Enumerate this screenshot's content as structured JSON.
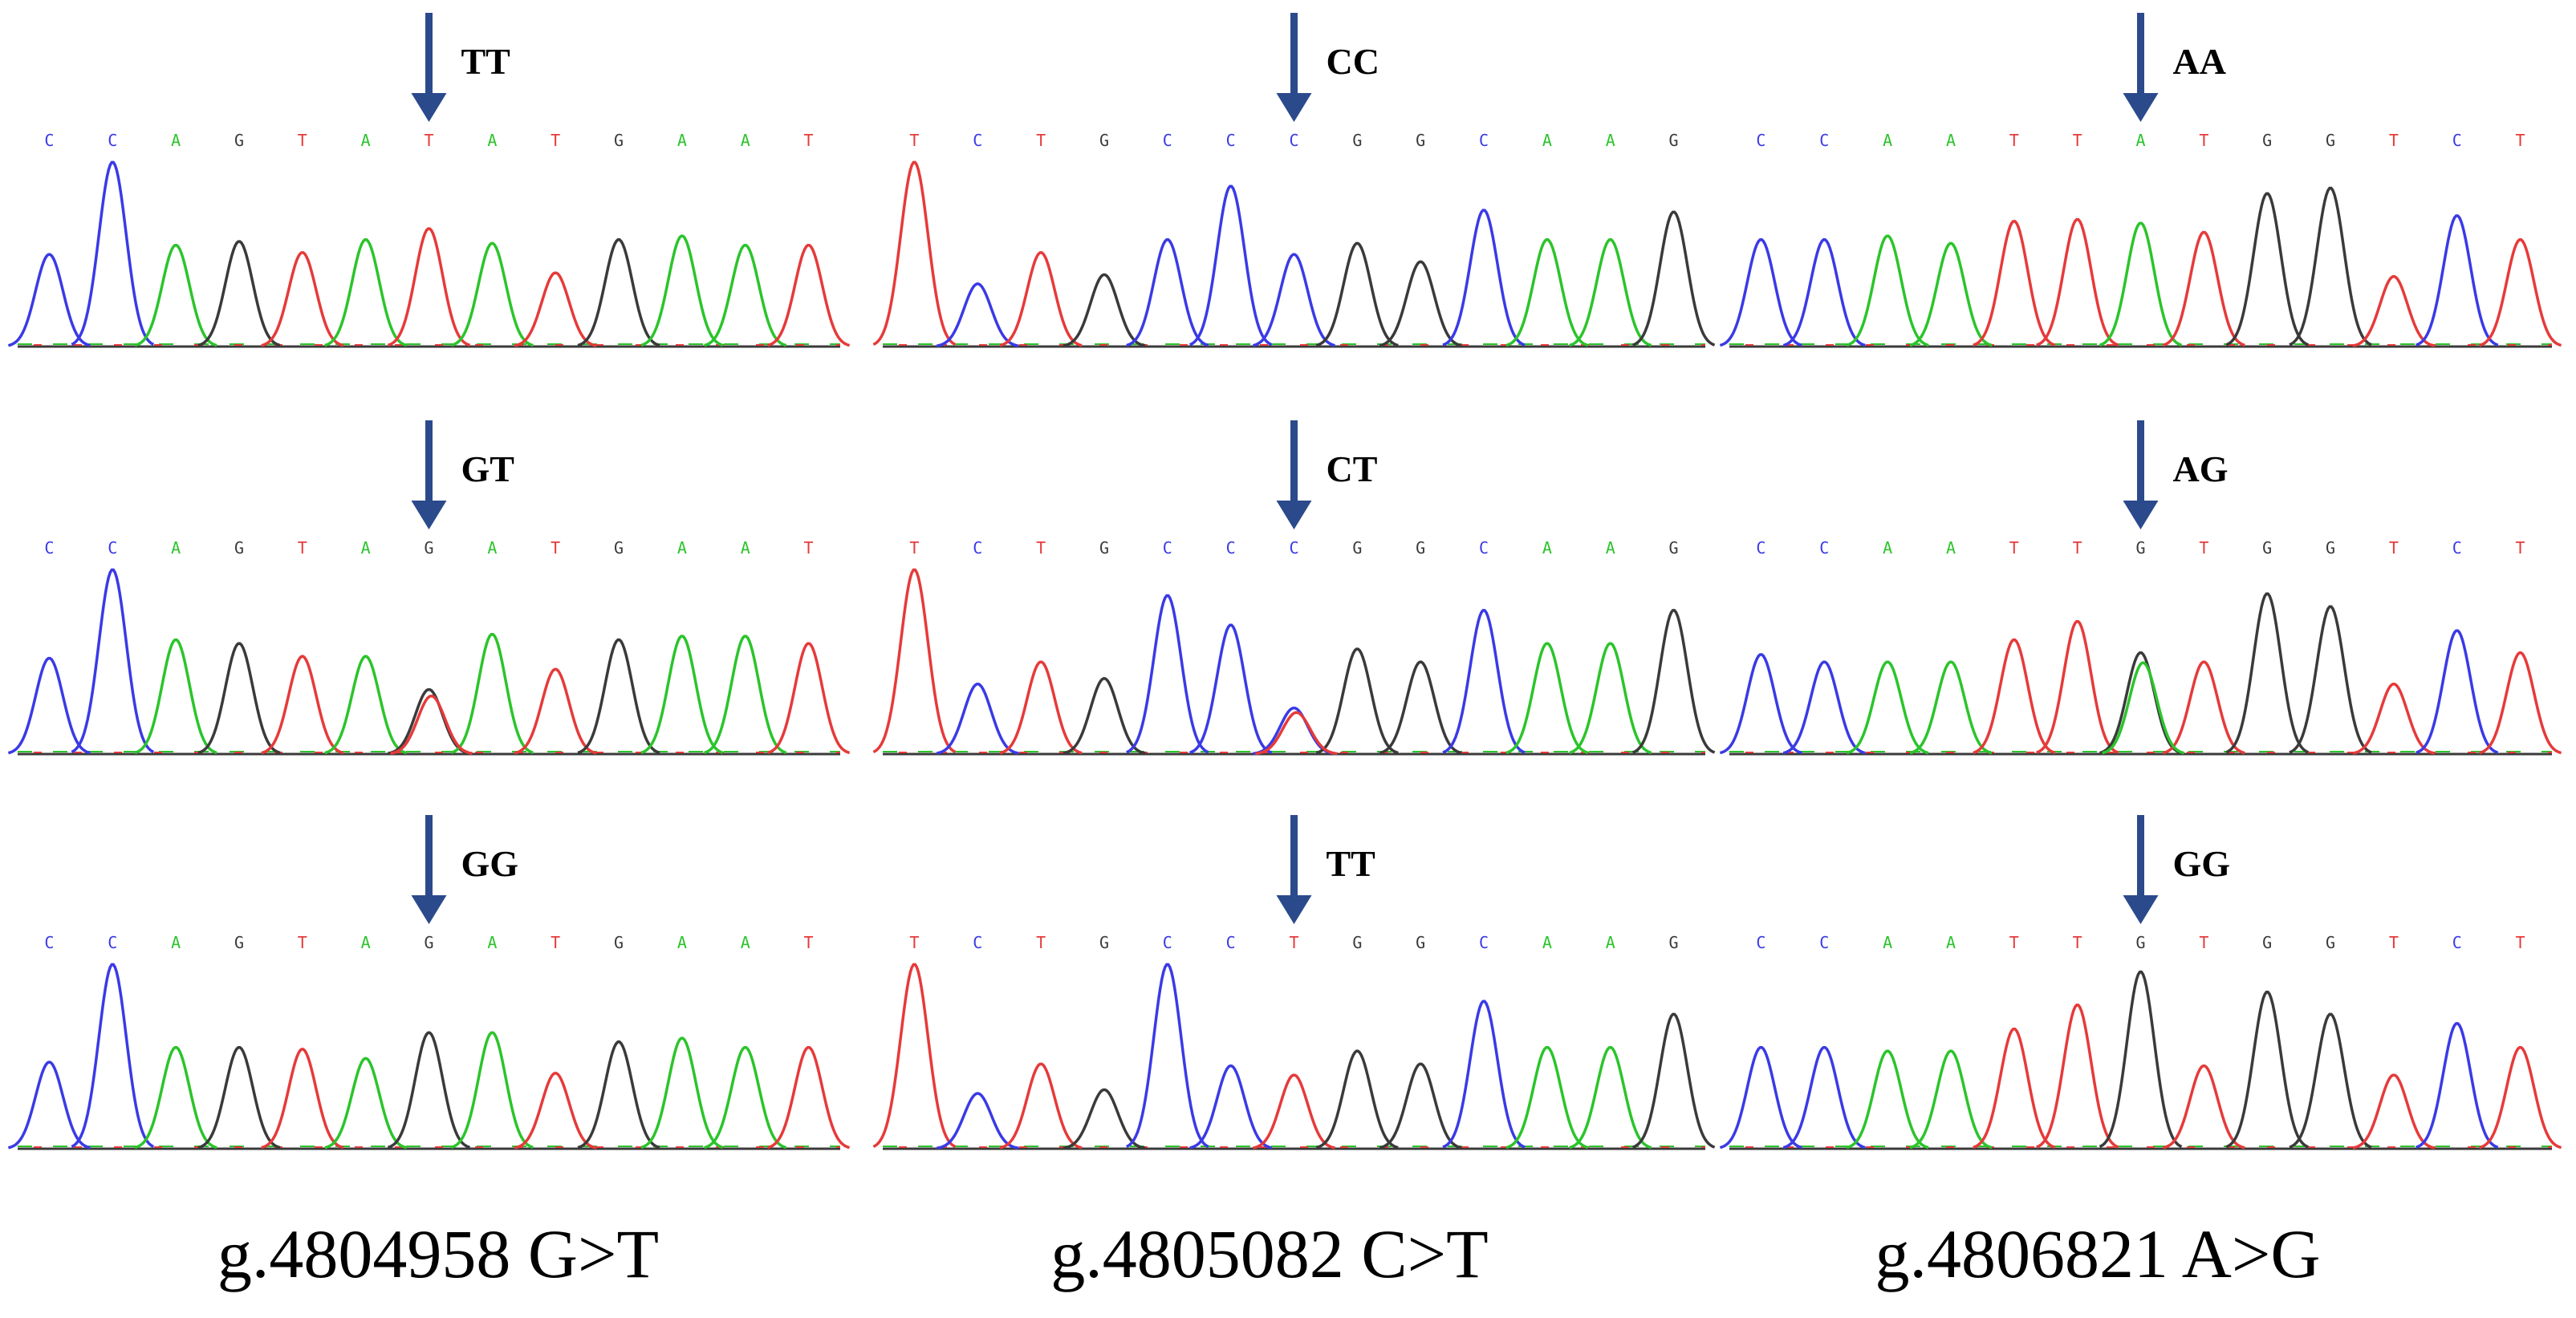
{
  "colors": {
    "A": "#2bc42b",
    "C": "#3a3ae6",
    "G": "#3a3a3a",
    "T": "#e63a3a",
    "arrow": "#2b4a8c",
    "baseline_multi": "mixed"
  },
  "columns": [
    {
      "caption": "g.4804958 G>T",
      "panels": [
        {
          "genotype": "TT",
          "bases": [
            "C",
            "C",
            "A",
            "G",
            "T",
            "A",
            "T",
            "A",
            "T",
            "G",
            "A",
            "A",
            "T"
          ],
          "heights": [
            0.5,
            1.0,
            0.55,
            0.57,
            0.51,
            0.58,
            0.64,
            0.56,
            0.4,
            0.58,
            0.6,
            0.55,
            0.55
          ],
          "snp": 6,
          "het": false
        },
        {
          "genotype": "GT",
          "bases": [
            "C",
            "C",
            "A",
            "G",
            "T",
            "A",
            "G",
            "A",
            "T",
            "G",
            "A",
            "A",
            "T"
          ],
          "heights": [
            0.52,
            1.0,
            0.62,
            0.6,
            0.53,
            0.53,
            0.35,
            0.65,
            0.46,
            0.62,
            0.64,
            0.64,
            0.6
          ],
          "snp": 6,
          "het": true
        },
        {
          "genotype": "GG",
          "bases": [
            "C",
            "C",
            "A",
            "G",
            "T",
            "A",
            "G",
            "A",
            "T",
            "G",
            "A",
            "A",
            "T"
          ],
          "heights": [
            0.47,
            1.0,
            0.55,
            0.55,
            0.54,
            0.49,
            0.63,
            0.63,
            0.41,
            0.58,
            0.6,
            0.55,
            0.55
          ],
          "snp": 6,
          "het": false
        }
      ]
    },
    {
      "caption": "g.4805082 C>T",
      "panels": [
        {
          "genotype": "CC",
          "bases": [
            "T",
            "C",
            "T",
            "G",
            "C",
            "C",
            "C",
            "G",
            "G",
            "C",
            "A",
            "A",
            "G"
          ],
          "heights": [
            1.0,
            0.34,
            0.51,
            0.39,
            0.58,
            0.87,
            0.5,
            0.56,
            0.46,
            0.74,
            0.58,
            0.58,
            0.73
          ],
          "snp": 6,
          "het": false
        },
        {
          "genotype": "CT",
          "bases": [
            "T",
            "C",
            "T",
            "G",
            "C",
            "C",
            "C",
            "G",
            "G",
            "C",
            "A",
            "A",
            "G"
          ],
          "heights": [
            1.0,
            0.38,
            0.5,
            0.41,
            0.86,
            0.7,
            0.25,
            0.57,
            0.5,
            0.78,
            0.6,
            0.6,
            0.78
          ],
          "snp": 6,
          "het": true
        },
        {
          "genotype": "TT",
          "bases": [
            "T",
            "C",
            "T",
            "G",
            "C",
            "C",
            "T",
            "G",
            "G",
            "C",
            "A",
            "A",
            "G"
          ],
          "heights": [
            1.0,
            0.3,
            0.46,
            0.32,
            1.0,
            0.45,
            0.4,
            0.53,
            0.46,
            0.8,
            0.55,
            0.55,
            0.73
          ],
          "snp": 6,
          "het": false
        }
      ]
    },
    {
      "caption": "g.4806821 A>G",
      "panels": [
        {
          "genotype": "AA",
          "bases": [
            "C",
            "C",
            "A",
            "A",
            "T",
            "T",
            "A",
            "T",
            "G",
            "G",
            "T",
            "C",
            "T"
          ],
          "heights": [
            0.58,
            0.58,
            0.6,
            0.56,
            0.68,
            0.69,
            0.67,
            0.62,
            0.83,
            0.86,
            0.38,
            0.71,
            0.58
          ],
          "snp": 6,
          "het": false
        },
        {
          "genotype": "AG",
          "bases": [
            "C",
            "C",
            "A",
            "A",
            "T",
            "T",
            "G",
            "T",
            "G",
            "G",
            "T",
            "C",
            "T"
          ],
          "heights": [
            0.54,
            0.5,
            0.5,
            0.5,
            0.62,
            0.72,
            0.55,
            0.5,
            0.87,
            0.8,
            0.38,
            0.67,
            0.55
          ],
          "snp": 6,
          "het": true
        },
        {
          "genotype": "GG",
          "bases": [
            "C",
            "C",
            "A",
            "A",
            "T",
            "T",
            "G",
            "T",
            "G",
            "G",
            "T",
            "C",
            "T"
          ],
          "heights": [
            0.55,
            0.55,
            0.53,
            0.53,
            0.65,
            0.78,
            0.96,
            0.45,
            0.85,
            0.73,
            0.4,
            0.68,
            0.55
          ],
          "snp": 6,
          "het": false
        }
      ]
    }
  ]
}
